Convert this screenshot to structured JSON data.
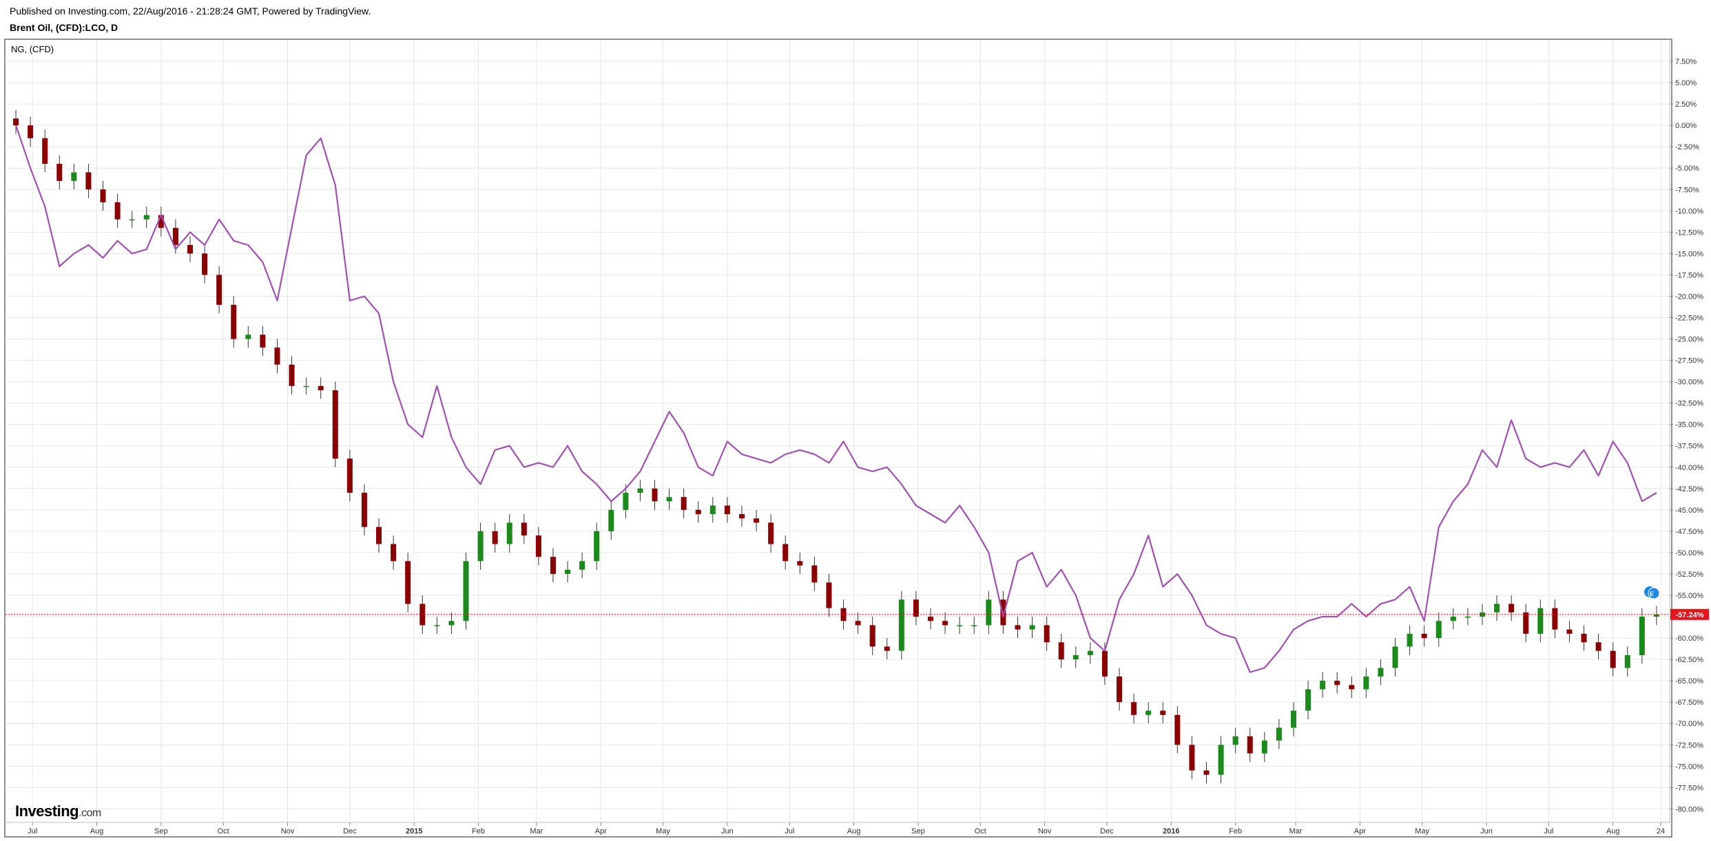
{
  "header": {
    "published": "Published on Investing.com, 22/Aug/2016 - 21:28:24 GMT, Powered by TradingView.",
    "instrument": "Brent Oil, (CFD):LCO, D"
  },
  "overlay_label": "NG,  (CFD)",
  "logo": {
    "main": "Investing",
    "suffix": ".com"
  },
  "colors": {
    "up": "#1a8a1a",
    "down": "#8b0000",
    "overlay": "#a050b0",
    "last_price_bg": "#e8141b",
    "grid": "#e6e6e6"
  },
  "chart_data": {
    "type": "line",
    "title": "Brent Oil, (CFD):LCO, D",
    "ylabel": "",
    "xlabel": "",
    "y_unit": "%",
    "ylim": [
      -81.5,
      10
    ],
    "grid": true,
    "y_ticks": [
      "7.50%",
      "5.00%",
      "2.50%",
      "0.00%",
      "-2.50%",
      "-5.00%",
      "-7.50%",
      "-10.00%",
      "-12.50%",
      "-15.00%",
      "-17.50%",
      "-20.00%",
      "-22.50%",
      "-25.00%",
      "-27.50%",
      "-30.00%",
      "-32.50%",
      "-35.00%",
      "-37.50%",
      "-40.00%",
      "-42.50%",
      "-45.00%",
      "-47.50%",
      "-50.00%",
      "-52.50%",
      "-55.00%",
      "-57.50%",
      "-60.00%",
      "-62.50%",
      "-65.00%",
      "-67.50%",
      "-70.00%",
      "-72.50%",
      "-75.00%",
      "-77.50%",
      "-80.00%"
    ],
    "x_ticks": [
      {
        "label": "Jul",
        "date": "2014-07-01",
        "bold": false
      },
      {
        "label": "Aug",
        "date": "2014-08-01",
        "bold": false
      },
      {
        "label": "Sep",
        "date": "2014-09-01",
        "bold": false
      },
      {
        "label": "Oct",
        "date": "2014-10-01",
        "bold": false
      },
      {
        "label": "Nov",
        "date": "2014-11-01",
        "bold": false
      },
      {
        "label": "Dec",
        "date": "2014-12-01",
        "bold": false
      },
      {
        "label": "2015",
        "date": "2015-01-01",
        "bold": true
      },
      {
        "label": "Feb",
        "date": "2015-02-01",
        "bold": false
      },
      {
        "label": "Mar",
        "date": "2015-03-01",
        "bold": false
      },
      {
        "label": "Apr",
        "date": "2015-04-01",
        "bold": false
      },
      {
        "label": "May",
        "date": "2015-05-01",
        "bold": false
      },
      {
        "label": "Jun",
        "date": "2015-06-01",
        "bold": false
      },
      {
        "label": "Jul",
        "date": "2015-07-01",
        "bold": false
      },
      {
        "label": "Aug",
        "date": "2015-08-01",
        "bold": false
      },
      {
        "label": "Sep",
        "date": "2015-09-01",
        "bold": false
      },
      {
        "label": "Oct",
        "date": "2015-10-01",
        "bold": false
      },
      {
        "label": "Nov",
        "date": "2015-11-01",
        "bold": false
      },
      {
        "label": "Dec",
        "date": "2015-12-01",
        "bold": false
      },
      {
        "label": "2016",
        "date": "2016-01-01",
        "bold": true
      },
      {
        "label": "Feb",
        "date": "2016-02-01",
        "bold": false
      },
      {
        "label": "Mar",
        "date": "2016-03-01",
        "bold": false
      },
      {
        "label": "Apr",
        "date": "2016-04-01",
        "bold": false
      },
      {
        "label": "May",
        "date": "2016-05-01",
        "bold": false
      },
      {
        "label": "Jun",
        "date": "2016-06-01",
        "bold": false
      },
      {
        "label": "Jul",
        "date": "2016-07-01",
        "bold": false
      },
      {
        "label": "Aug",
        "date": "2016-08-01",
        "bold": false
      },
      {
        "label": "24",
        "date": "2016-08-24",
        "bold": false
      }
    ],
    "last_value_label": "-57.24%",
    "last_value": -57.24,
    "series": [
      {
        "name": "Brent Oil, (CFD):LCO",
        "style": "candles",
        "dates": [
          "2014-06-23",
          "2014-06-30",
          "2014-07-07",
          "2014-07-14",
          "2014-07-21",
          "2014-07-28",
          "2014-08-04",
          "2014-08-11",
          "2014-08-18",
          "2014-08-25",
          "2014-09-01",
          "2014-09-08",
          "2014-09-15",
          "2014-09-22",
          "2014-09-29",
          "2014-10-06",
          "2014-10-13",
          "2014-10-20",
          "2014-10-27",
          "2014-11-03",
          "2014-11-10",
          "2014-11-17",
          "2014-11-24",
          "2014-12-01",
          "2014-12-08",
          "2014-12-15",
          "2014-12-22",
          "2014-12-29",
          "2015-01-05",
          "2015-01-12",
          "2015-01-19",
          "2015-01-26",
          "2015-02-02",
          "2015-02-09",
          "2015-02-16",
          "2015-02-23",
          "2015-03-02",
          "2015-03-09",
          "2015-03-16",
          "2015-03-23",
          "2015-03-30",
          "2015-04-06",
          "2015-04-13",
          "2015-04-20",
          "2015-04-27",
          "2015-05-04",
          "2015-05-11",
          "2015-05-18",
          "2015-05-25",
          "2015-06-01",
          "2015-06-08",
          "2015-06-15",
          "2015-06-22",
          "2015-06-29",
          "2015-07-06",
          "2015-07-13",
          "2015-07-20",
          "2015-07-27",
          "2015-08-03",
          "2015-08-10",
          "2015-08-17",
          "2015-08-24",
          "2015-08-31",
          "2015-09-07",
          "2015-09-14",
          "2015-09-21",
          "2015-09-28",
          "2015-10-05",
          "2015-10-12",
          "2015-10-19",
          "2015-10-26",
          "2015-11-02",
          "2015-11-09",
          "2015-11-16",
          "2015-11-23",
          "2015-11-30",
          "2015-12-07",
          "2015-12-14",
          "2015-12-21",
          "2015-12-28",
          "2016-01-04",
          "2016-01-11",
          "2016-01-18",
          "2016-01-25",
          "2016-02-01",
          "2016-02-08",
          "2016-02-15",
          "2016-02-22",
          "2016-02-29",
          "2016-03-07",
          "2016-03-14",
          "2016-03-21",
          "2016-03-28",
          "2016-04-04",
          "2016-04-11",
          "2016-04-18",
          "2016-04-25",
          "2016-05-02",
          "2016-05-09",
          "2016-05-16",
          "2016-05-23",
          "2016-05-30",
          "2016-06-06",
          "2016-06-13",
          "2016-06-20",
          "2016-06-27",
          "2016-07-04",
          "2016-07-11",
          "2016-07-18",
          "2016-07-25",
          "2016-08-01",
          "2016-08-08",
          "2016-08-15",
          "2016-08-22"
        ],
        "values": [
          0.0,
          -1.5,
          -4.5,
          -6.5,
          -5.5,
          -7.5,
          -9.0,
          -11.0,
          -11.0,
          -10.5,
          -12.0,
          -14.0,
          -15.0,
          -17.5,
          -21.0,
          -25.0,
          -24.5,
          -26.0,
          -28.0,
          -30.5,
          -30.5,
          -31.0,
          -39.0,
          -43.0,
          -47.0,
          -49.0,
          -51.0,
          -56.0,
          -58.5,
          -58.5,
          -58.0,
          -51.0,
          -47.5,
          -49.0,
          -46.5,
          -48.0,
          -50.5,
          -52.5,
          -52.0,
          -51.0,
          -47.5,
          -45.0,
          -43.0,
          -42.5,
          -44.0,
          -43.5,
          -45.0,
          -45.5,
          -44.5,
          -45.5,
          -46.0,
          -46.5,
          -49.0,
          -51.0,
          -51.5,
          -53.5,
          -56.5,
          -58.0,
          -58.5,
          -61.0,
          -61.5,
          -55.5,
          -57.5,
          -58.0,
          -58.5,
          -58.5,
          -58.5,
          -55.5,
          -58.5,
          -59.0,
          -58.5,
          -60.5,
          -62.5,
          -62.0,
          -61.5,
          -64.5,
          -67.5,
          -69.0,
          -68.5,
          -69.0,
          -72.5,
          -75.5,
          -76.0,
          -72.5,
          -71.5,
          -73.5,
          -72.0,
          -70.5,
          -68.5,
          -66.0,
          -65.0,
          -65.5,
          -66.0,
          -64.5,
          -63.5,
          -61.0,
          -59.5,
          -60.0,
          -58.0,
          -57.5,
          -57.5,
          -57.0,
          -56.0,
          -57.0,
          -59.5,
          -56.5,
          -59.0,
          -59.5,
          -60.5,
          -61.5,
          -63.5,
          -62.0,
          -57.5,
          -57.24
        ]
      },
      {
        "name": "NG,  (CFD)",
        "style": "line",
        "dates": [
          "2014-06-23",
          "2014-06-30",
          "2014-07-07",
          "2014-07-14",
          "2014-07-21",
          "2014-07-28",
          "2014-08-04",
          "2014-08-11",
          "2014-08-18",
          "2014-08-25",
          "2014-09-01",
          "2014-09-08",
          "2014-09-15",
          "2014-09-22",
          "2014-09-29",
          "2014-10-06",
          "2014-10-13",
          "2014-10-20",
          "2014-10-27",
          "2014-11-03",
          "2014-11-10",
          "2014-11-17",
          "2014-11-24",
          "2014-12-01",
          "2014-12-08",
          "2014-12-15",
          "2014-12-22",
          "2014-12-29",
          "2015-01-05",
          "2015-01-12",
          "2015-01-19",
          "2015-01-26",
          "2015-02-02",
          "2015-02-09",
          "2015-02-16",
          "2015-02-23",
          "2015-03-02",
          "2015-03-09",
          "2015-03-16",
          "2015-03-23",
          "2015-03-30",
          "2015-04-06",
          "2015-04-13",
          "2015-04-20",
          "2015-04-27",
          "2015-05-04",
          "2015-05-11",
          "2015-05-18",
          "2015-05-25",
          "2015-06-01",
          "2015-06-08",
          "2015-06-15",
          "2015-06-22",
          "2015-06-29",
          "2015-07-06",
          "2015-07-13",
          "2015-07-20",
          "2015-07-27",
          "2015-08-03",
          "2015-08-10",
          "2015-08-17",
          "2015-08-24",
          "2015-08-31",
          "2015-09-07",
          "2015-09-14",
          "2015-09-21",
          "2015-09-28",
          "2015-10-05",
          "2015-10-12",
          "2015-10-19",
          "2015-10-26",
          "2015-11-02",
          "2015-11-09",
          "2015-11-16",
          "2015-11-23",
          "2015-11-30",
          "2015-12-07",
          "2015-12-14",
          "2015-12-21",
          "2015-12-28",
          "2016-01-04",
          "2016-01-11",
          "2016-01-18",
          "2016-01-25",
          "2016-02-01",
          "2016-02-08",
          "2016-02-15",
          "2016-02-22",
          "2016-02-29",
          "2016-03-07",
          "2016-03-14",
          "2016-03-21",
          "2016-03-28",
          "2016-04-04",
          "2016-04-11",
          "2016-04-18",
          "2016-04-25",
          "2016-05-02",
          "2016-05-09",
          "2016-05-16",
          "2016-05-23",
          "2016-05-30",
          "2016-06-06",
          "2016-06-13",
          "2016-06-20",
          "2016-06-27",
          "2016-07-04",
          "2016-07-11",
          "2016-07-18",
          "2016-07-25",
          "2016-08-01",
          "2016-08-08",
          "2016-08-15",
          "2016-08-22"
        ],
        "values": [
          0.0,
          -5.0,
          -9.5,
          -16.5,
          -15.0,
          -14.0,
          -15.5,
          -13.5,
          -15.0,
          -14.5,
          -10.5,
          -14.5,
          -12.5,
          -14.0,
          -11.0,
          -13.5,
          -14.0,
          -16.0,
          -20.5,
          -12.0,
          -3.5,
          -1.5,
          -7.0,
          -20.5,
          -20.0,
          -22.0,
          -30.0,
          -35.0,
          -36.5,
          -30.5,
          -36.5,
          -40.0,
          -42.0,
          -38.0,
          -37.5,
          -40.0,
          -39.5,
          -40.0,
          -37.5,
          -40.5,
          -42.0,
          -44.0,
          -42.5,
          -40.5,
          -37.0,
          -33.5,
          -36.0,
          -40.0,
          -41.0,
          -37.0,
          -38.5,
          -39.0,
          -39.5,
          -38.5,
          -38.0,
          -38.5,
          -39.5,
          -37.0,
          -40.0,
          -40.5,
          -40.0,
          -42.0,
          -44.5,
          -45.5,
          -46.5,
          -44.5,
          -47.0,
          -50.0,
          -57.5,
          -51.0,
          -50.0,
          -54.0,
          -52.0,
          -55.0,
          -60.0,
          -61.5,
          -55.5,
          -52.5,
          -48.0,
          -54.0,
          -52.5,
          -55.0,
          -58.5,
          -59.5,
          -60.0,
          -64.0,
          -63.5,
          -61.5,
          -59.0,
          -58.0,
          -57.5,
          -57.5,
          -56.0,
          -57.5,
          -56.0,
          -55.5,
          -54.0,
          -58.0,
          -47.0,
          -44.0,
          -42.0,
          -38.0,
          -40.0,
          -34.5,
          -39.0,
          -40.0,
          -39.5,
          -40.0,
          -38.0,
          -41.0,
          -37.0,
          -39.5,
          -44.0,
          -43.0
        ]
      }
    ]
  }
}
